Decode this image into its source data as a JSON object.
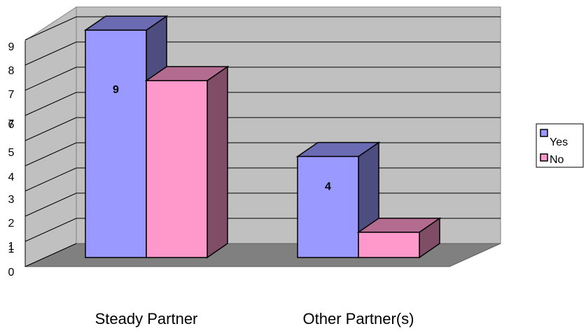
{
  "chart_data": {
    "type": "bar",
    "style": "3d-clustered",
    "categories": [
      "Steady Partner",
      "Other Partner(s)"
    ],
    "series": [
      {
        "name": "Yes",
        "values": [
          9,
          4
        ],
        "color": "#9999ff",
        "top_color": "#6b6bb3",
        "side_color": "#4d4d80"
      },
      {
        "name": "No",
        "values": [
          7,
          1
        ],
        "color": "#ff99cc",
        "top_color": "#b36b8f",
        "side_color": "#804d66"
      }
    ],
    "data_labels": [
      {
        "series": 0,
        "category": 0,
        "text": "9"
      },
      {
        "series": 0,
        "category": 1,
        "text": "4"
      }
    ],
    "y_ticks": [
      "0",
      "1",
      "1",
      "2",
      "3",
      "4",
      "5",
      "6",
      "7",
      "7",
      "8",
      "9"
    ],
    "ylim": [
      0,
      9
    ],
    "grid": true,
    "legend_position": "right",
    "colors": {
      "wall": "#c0c0c0",
      "floor": "#808080",
      "grid": "#000000"
    }
  }
}
